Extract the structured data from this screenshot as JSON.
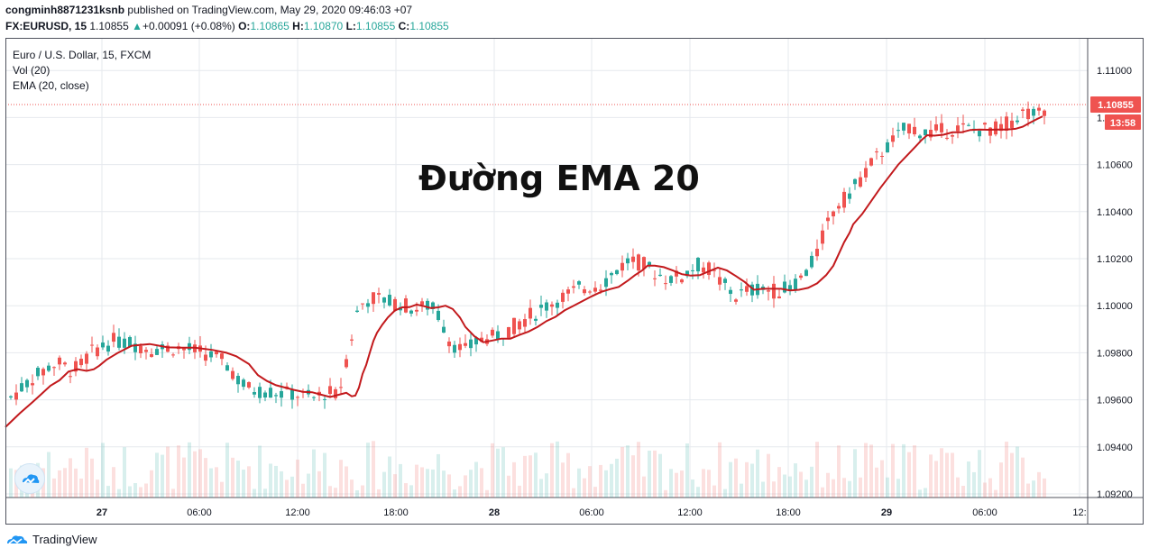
{
  "header": {
    "publisher": "congminh8871231ksnb",
    "published_text": "published on TradingView.com, May 29, 2020 09:46:03 +07",
    "symbol": "FX:EURUSD, 15",
    "last": "1.10855",
    "change": "+0.00091 (+0.08%)",
    "o_label": "O:",
    "o_val": "1.10865",
    "h_label": "H:",
    "h_val": "1.10870",
    "l_label": "L:",
    "l_val": "1.10855",
    "c_label": "C:",
    "c_val": "1.10855"
  },
  "legend": {
    "title": "Euro / U.S. Dollar, 15, FXCM",
    "vol": "Vol (20)",
    "ema": "EMA (20, close)"
  },
  "overlay_title": "Đường EMA 20",
  "price_label": "1.10855",
  "countdown_label": "13:58",
  "footer": {
    "brand": "TradingView"
  },
  "colors": {
    "up": "#26a69a",
    "down": "#ef5350",
    "ema": "#c2191c",
    "grid": "#e6e9ee",
    "price_tag": "#ef5350"
  },
  "chart_data": {
    "type": "line",
    "description_series": "candlestick price line with EMA(20) overlay",
    "y_ticks": [
      "1.11000",
      "1.10800",
      "1.10600",
      "1.10400",
      "1.10200",
      "1.10000",
      "1.09800",
      "1.09600",
      "1.09400",
      "1.09200"
    ],
    "x_ticks": [
      "27",
      "06:00",
      "12:00",
      "18:00",
      "28",
      "06:00",
      "12:00",
      "18:00",
      "29",
      "06:00",
      "12:"
    ],
    "ylim": [
      1.092,
      1.111
    ],
    "series": [
      {
        "name": "EMA (20, close)",
        "x": [
          0,
          16,
          30,
          40,
          50,
          60,
          70,
          80,
          90,
          98,
          104,
          112,
          124,
          140,
          160,
          180,
          196,
          210,
          230,
          245,
          256,
          270,
          280,
          290,
          300,
          310,
          320,
          330,
          340,
          350,
          360,
          370,
          378,
          384,
          388,
          392,
          396,
          400,
          404,
          408,
          412,
          418,
          424,
          432,
          440,
          448,
          456,
          464,
          472,
          480,
          488,
          496,
          504,
          510,
          520,
          530,
          540,
          550,
          560,
          570,
          580,
          590,
          600,
          610,
          620,
          630,
          640,
          650,
          660,
          670,
          680,
          690,
          698,
          706,
          712,
          720,
          730,
          740,
          750,
          760,
          770,
          780,
          790,
          800,
          810,
          820,
          826,
          830,
          840,
          850,
          860,
          870,
          880,
          890,
          900,
          910,
          918,
          924,
          930,
          936,
          940,
          950,
          960,
          970,
          980,
          990,
          1000,
          1010,
          1016,
          1022,
          1030,
          1040,
          1050,
          1060,
          1070,
          1080,
          1090,
          1100,
          1110,
          1120,
          1128,
          1136,
          1144,
          1150
        ],
        "y": [
          1.09484,
          1.09543,
          1.0959,
          1.09625,
          1.0966,
          1.09683,
          1.0972,
          1.0973,
          1.09723,
          1.0973,
          1.09745,
          1.0977,
          1.09798,
          1.0983,
          1.09837,
          1.09823,
          1.09822,
          1.09822,
          1.09812,
          1.098,
          1.09785,
          1.09752,
          1.09705,
          1.0968,
          1.09662,
          1.09652,
          1.09642,
          1.09634,
          1.09632,
          1.09622,
          1.09612,
          1.09622,
          1.0963,
          1.09615,
          1.09618,
          1.09652,
          1.0971,
          1.09748,
          1.098,
          1.0985,
          1.09885,
          1.0992,
          1.0995,
          1.0998,
          1.09993,
          1.09994,
          1.10005,
          1.09998,
          1.0999,
          1.09993,
          1.1,
          1.09986,
          1.0995,
          1.0991,
          1.0987,
          1.09845,
          1.09852,
          1.0986,
          1.0986,
          1.09876,
          1.0989,
          1.0991,
          1.09935,
          1.09953,
          1.0998,
          1.1,
          1.1002,
          1.1004,
          1.10058,
          1.1007,
          1.1008,
          1.10106,
          1.1013,
          1.1015,
          1.1017,
          1.1017,
          1.10164,
          1.1015,
          1.10134,
          1.10128,
          1.1013,
          1.10146,
          1.10162,
          1.1015,
          1.10126,
          1.101,
          1.1008,
          1.10068,
          1.10072,
          1.10072,
          1.10072,
          1.10065,
          1.10068,
          1.10076,
          1.10095,
          1.1013,
          1.1017,
          1.1022,
          1.1027,
          1.1031,
          1.10346,
          1.1039,
          1.10445,
          1.105,
          1.1055,
          1.106,
          1.1064,
          1.1068,
          1.10705,
          1.10725,
          1.10723,
          1.10727,
          1.10737,
          1.10737,
          1.10747,
          1.10749,
          1.10748,
          1.10749,
          1.10749,
          1.10752,
          1.10761,
          1.10778,
          1.10794,
          1.10805
        ]
      }
    ]
  }
}
